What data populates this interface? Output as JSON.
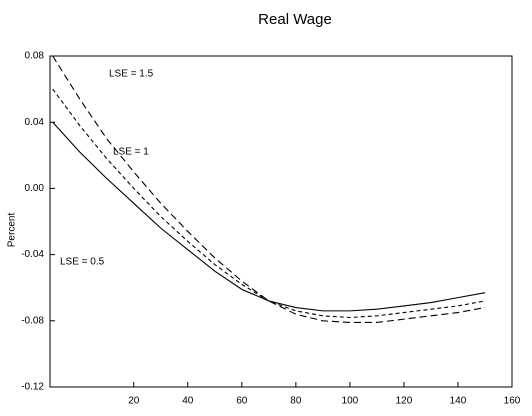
{
  "chart_data": {
    "type": "line",
    "title": "Real Wage",
    "ylabel": "Percent",
    "x": [
      -10,
      0,
      10,
      20,
      30,
      40,
      50,
      60,
      70,
      80,
      90,
      100,
      110,
      120,
      130,
      140,
      150
    ],
    "series": [
      {
        "name": "LSE = 0.5",
        "color": "#000000",
        "dash": "solid",
        "values": [
          0.04,
          0.022,
          0.006,
          -0.009,
          -0.024,
          -0.037,
          -0.05,
          -0.061,
          -0.068,
          -0.072,
          -0.074,
          -0.074,
          -0.073,
          -0.071,
          -0.069,
          -0.066,
          -0.063
        ]
      },
      {
        "name": "LSE = 1",
        "color": "#000000",
        "dash": "short",
        "values": [
          0.06,
          0.038,
          0.018,
          0.0,
          -0.017,
          -0.032,
          -0.046,
          -0.058,
          -0.068,
          -0.074,
          -0.077,
          -0.078,
          -0.077,
          -0.075,
          -0.073,
          -0.071,
          -0.068
        ]
      },
      {
        "name": "LSE = 1.5",
        "color": "#000000",
        "dash": "long",
        "values": [
          0.08,
          0.054,
          0.03,
          0.01,
          -0.009,
          -0.026,
          -0.042,
          -0.056,
          -0.068,
          -0.076,
          -0.08,
          -0.081,
          -0.081,
          -0.079,
          -0.077,
          -0.075,
          -0.072
        ]
      }
    ],
    "xlim": [
      -11,
      160
    ],
    "xticks": [
      20,
      40,
      60,
      80,
      100,
      120,
      140,
      160
    ],
    "ylim": [
      -0.12,
      0.08
    ],
    "yticks": [
      -0.12,
      -0.08,
      -0.04,
      {
        "value": 0,
        "label": "0.00"
      },
      0.04,
      0.08
    ],
    "grid": false
  }
}
